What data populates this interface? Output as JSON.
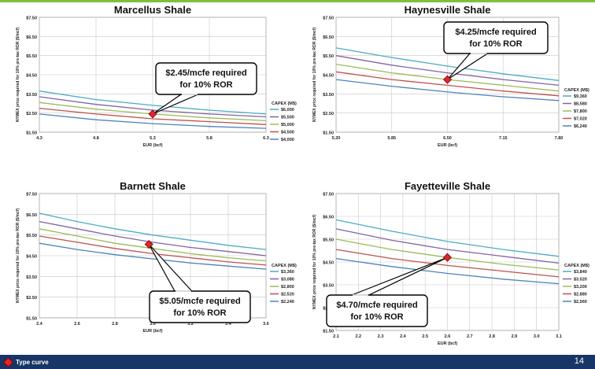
{
  "slide": {
    "legend_label": "Type curve",
    "page_number": "14"
  },
  "colors": {
    "curve_palette": [
      "#4bacc6",
      "#8064a2",
      "#9bbb59",
      "#c0504d",
      "#4f81bd"
    ],
    "marker": "#e0262d",
    "footer": "#173566",
    "top_stripe": "#7fbf3f"
  },
  "chart_data": [
    {
      "type": "line",
      "title": "Marcellus Shale",
      "xlabel": "EUR (bcf)",
      "ylabel": "NYMEX price required for 10% pre-tax ROR ($/mcf)",
      "xlim": [
        4.3,
        6.3
      ],
      "ylim": [
        1.5,
        7.5
      ],
      "xticks": [
        "4.3",
        "4.8",
        "5.3",
        "5.8",
        "6.3"
      ],
      "yticks": [
        "$1.50",
        "$2.50",
        "$3.50",
        "$4.50",
        "$5.50",
        "$6.50",
        "$7.50"
      ],
      "legend_title": "CAPEX (M$)",
      "legend_position": "right",
      "grid": true,
      "series": [
        {
          "name": "$6,000",
          "x": [
            4.3,
            4.8,
            5.3,
            5.8,
            6.3
          ],
          "y": [
            3.65,
            3.2,
            2.9,
            2.65,
            2.45
          ]
        },
        {
          "name": "$5,500",
          "x": [
            4.3,
            4.8,
            5.3,
            5.8,
            6.3
          ],
          "y": [
            3.35,
            2.95,
            2.65,
            2.45,
            2.3
          ]
        },
        {
          "name": "$5,000",
          "x": [
            4.3,
            4.8,
            5.3,
            5.8,
            6.3
          ],
          "y": [
            3.05,
            2.7,
            2.45,
            2.25,
            2.1
          ]
        },
        {
          "name": "$4,500",
          "x": [
            4.3,
            4.8,
            5.3,
            5.8,
            6.3
          ],
          "y": [
            2.75,
            2.45,
            2.2,
            2.05,
            1.9
          ]
        },
        {
          "name": "$4,000",
          "x": [
            4.3,
            4.8,
            5.3,
            5.8,
            6.3
          ],
          "y": [
            2.45,
            2.15,
            1.95,
            1.8,
            1.7
          ]
        }
      ],
      "marker": {
        "x": 5.3,
        "y": 2.45
      },
      "callout": [
        "$2.45/mcfe required",
        "for 10% ROR"
      ]
    },
    {
      "type": "line",
      "title": "Haynesville Shale",
      "xlabel": "EUR (bcf)",
      "ylabel": "NYMEX price required for 10% pre-tax ROR ($/mcf)",
      "xlim": [
        5.2,
        7.8
      ],
      "ylim": [
        1.5,
        7.5
      ],
      "xticks": [
        "5.20",
        "5.85",
        "6.50",
        "7.15",
        "7.80"
      ],
      "yticks": [
        "$1.50",
        "$2.50",
        "$3.50",
        "$4.50",
        "$5.50",
        "$6.50",
        "$7.50"
      ],
      "legend_title": "CAPEX (M$)",
      "legend_position": "right",
      "grid": true,
      "series": [
        {
          "name": "$9,360",
          "x": [
            5.2,
            5.85,
            6.5,
            7.15,
            7.8
          ],
          "y": [
            5.9,
            5.4,
            4.95,
            4.55,
            4.2
          ]
        },
        {
          "name": "$8,580",
          "x": [
            5.2,
            5.85,
            6.5,
            7.15,
            7.8
          ],
          "y": [
            5.5,
            5.0,
            4.6,
            4.25,
            3.95
          ]
        },
        {
          "name": "$7,800",
          "x": [
            5.2,
            5.85,
            6.5,
            7.15,
            7.8
          ],
          "y": [
            5.05,
            4.6,
            4.25,
            3.95,
            3.65
          ]
        },
        {
          "name": "$7,020",
          "x": [
            5.2,
            5.85,
            6.5,
            7.15,
            7.8
          ],
          "y": [
            4.65,
            4.25,
            3.95,
            3.65,
            3.4
          ]
        },
        {
          "name": "$6,240",
          "x": [
            5.2,
            5.85,
            6.5,
            7.15,
            7.8
          ],
          "y": [
            4.25,
            3.9,
            3.6,
            3.35,
            3.15
          ]
        }
      ],
      "marker": {
        "x": 6.5,
        "y": 4.25
      },
      "callout": [
        "$4.25/mcfe required",
        "for 10% ROR"
      ]
    },
    {
      "type": "line",
      "title": "Barnett Shale",
      "xlabel": "EUR (bcf)",
      "ylabel": "NYMEX price required for 10% pre-tax ROR ($/mcf)",
      "xlim": [
        2.4,
        3.6
      ],
      "ylim": [
        1.5,
        7.5
      ],
      "xticks": [
        "2.4",
        "2.6",
        "2.8",
        "3.0",
        "3.2",
        "3.4",
        "3.6"
      ],
      "yticks": [
        "$1.50",
        "$2.50",
        "$3.50",
        "$4.50",
        "$5.50",
        "$6.50",
        "$7.50"
      ],
      "legend_title": "CAPEX (M$)",
      "legend_position": "right",
      "grid": true,
      "series": [
        {
          "name": "$3,360",
          "x": [
            2.4,
            2.6,
            2.8,
            3.0,
            3.2,
            3.4,
            3.6
          ],
          "y": [
            6.55,
            6.15,
            5.8,
            5.5,
            5.25,
            5.0,
            4.8
          ]
        },
        {
          "name": "$3,080",
          "x": [
            2.4,
            2.6,
            2.8,
            3.0,
            3.2,
            3.4,
            3.6
          ],
          "y": [
            6.15,
            5.8,
            5.45,
            5.15,
            4.9,
            4.7,
            4.5
          ]
        },
        {
          "name": "$2,800",
          "x": [
            2.4,
            2.6,
            2.8,
            3.0,
            3.2,
            3.4,
            3.6
          ],
          "y": [
            5.8,
            5.45,
            5.1,
            4.85,
            4.6,
            4.4,
            4.25
          ]
        },
        {
          "name": "$2,520",
          "x": [
            2.4,
            2.6,
            2.8,
            3.0,
            3.2,
            3.4,
            3.6
          ],
          "y": [
            5.45,
            5.15,
            4.85,
            4.6,
            4.4,
            4.2,
            4.05
          ]
        },
        {
          "name": "$2,240",
          "x": [
            2.4,
            2.6,
            2.8,
            3.0,
            3.2,
            3.4,
            3.6
          ],
          "y": [
            5.1,
            4.8,
            4.55,
            4.35,
            4.15,
            4.0,
            3.85
          ]
        }
      ],
      "marker": {
        "x": 2.98,
        "y": 5.05
      },
      "callout": [
        "$5.05/mcfe required",
        "for 10% ROR"
      ]
    },
    {
      "type": "line",
      "title": "Fayetteville Shale",
      "xlabel": "EUR (bcf)",
      "ylabel": "NYMEX price required for 10% pre-tax ROR ($/mcf)",
      "xlim": [
        2.1,
        3.1
      ],
      "ylim": [
        1.5,
        7.5
      ],
      "xticks": [
        "2.1",
        "2.2",
        "2.3",
        "2.4",
        "2.5",
        "2.6",
        "2.7",
        "2.8",
        "2.9",
        "3.0",
        "3.1"
      ],
      "yticks": [
        "$1.50",
        "$2.50",
        "$3.50",
        "$4.50",
        "$5.50",
        "$6.50",
        "$7.50"
      ],
      "legend_title": "CAPEX (M$)",
      "legend_position": "right",
      "grid": true,
      "series": [
        {
          "name": "$3,840",
          "x": [
            2.1,
            2.35,
            2.6,
            2.85,
            3.1
          ],
          "y": [
            6.35,
            5.85,
            5.4,
            5.05,
            4.75
          ]
        },
        {
          "name": "$3,520",
          "x": [
            2.1,
            2.35,
            2.6,
            2.85,
            3.1
          ],
          "y": [
            5.95,
            5.45,
            5.05,
            4.75,
            4.45
          ]
        },
        {
          "name": "$3,200",
          "x": [
            2.1,
            2.35,
            2.6,
            2.85,
            3.1
          ],
          "y": [
            5.5,
            5.05,
            4.7,
            4.4,
            4.15
          ]
        },
        {
          "name": "$2,880",
          "x": [
            2.1,
            2.35,
            2.6,
            2.85,
            3.1
          ],
          "y": [
            5.05,
            4.65,
            4.35,
            4.1,
            3.85
          ]
        },
        {
          "name": "$2,560",
          "x": [
            2.1,
            2.35,
            2.6,
            2.85,
            3.1
          ],
          "y": [
            4.65,
            4.3,
            4.0,
            3.75,
            3.55
          ]
        }
      ],
      "marker": {
        "x": 2.6,
        "y": 4.7
      },
      "callout": [
        "$4.70/mcfe required",
        "for 10% ROR"
      ]
    }
  ]
}
